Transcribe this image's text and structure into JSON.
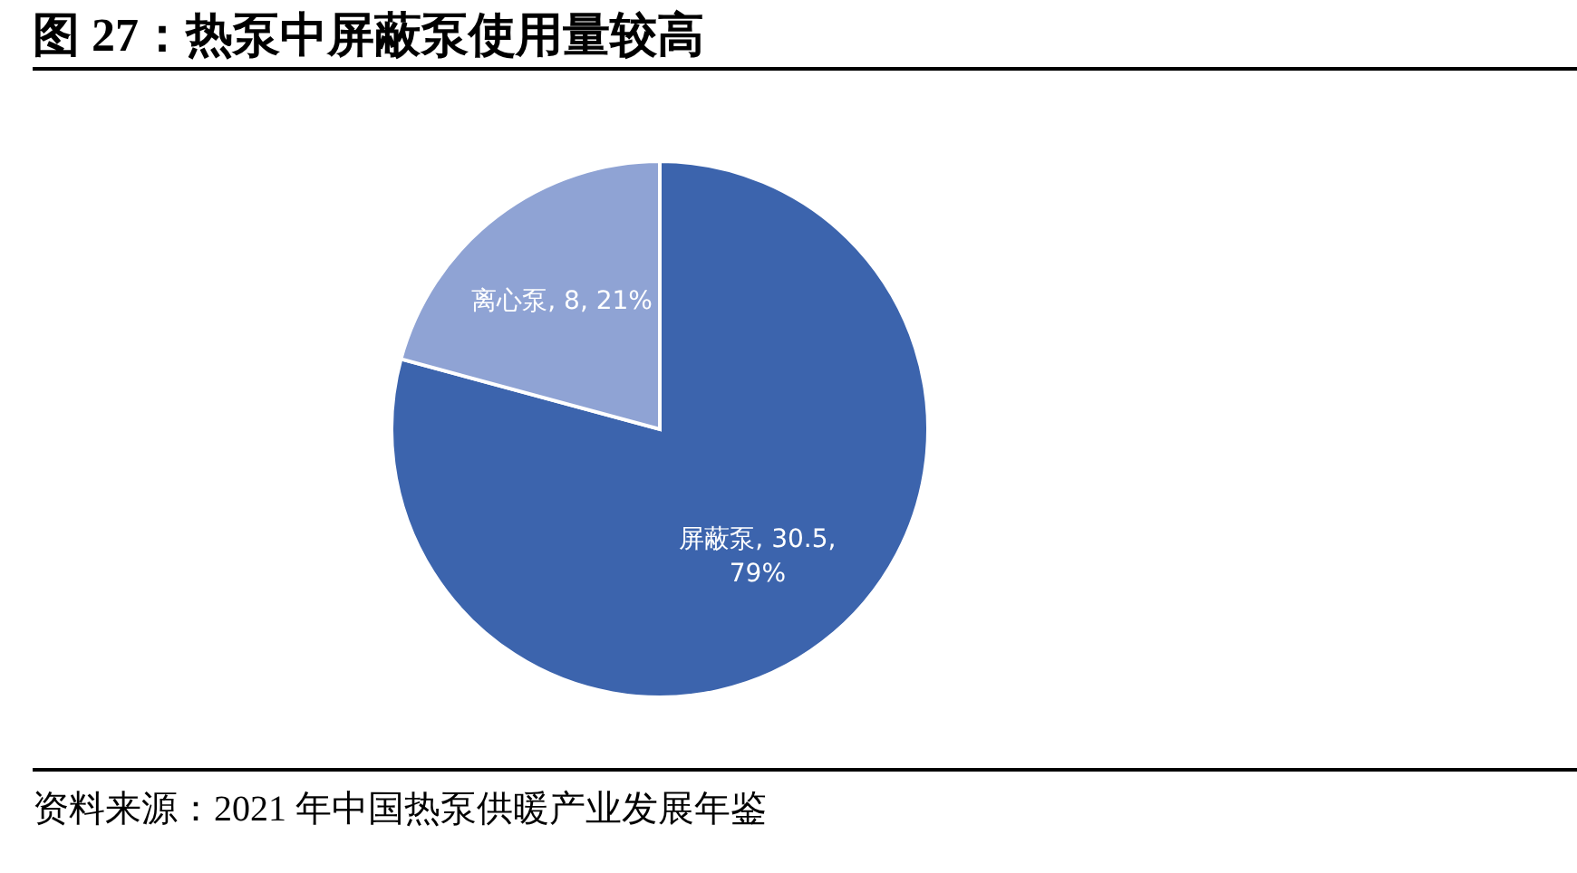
{
  "chart_data": {
    "type": "pie",
    "title": "图 27：热泵中屏蔽泵使用量较高",
    "categories": [
      "屏蔽泵",
      "离心泵"
    ],
    "values": [
      30.5,
      8
    ],
    "colors": [
      "#3c64ad",
      "#8fa3d4"
    ],
    "value_labels": [
      "30.5, 79%",
      "8, 21%"
    ],
    "annotations": [
      "资料来源：2021 年中国热泵供暖产业发展年鉴"
    ]
  }
}
